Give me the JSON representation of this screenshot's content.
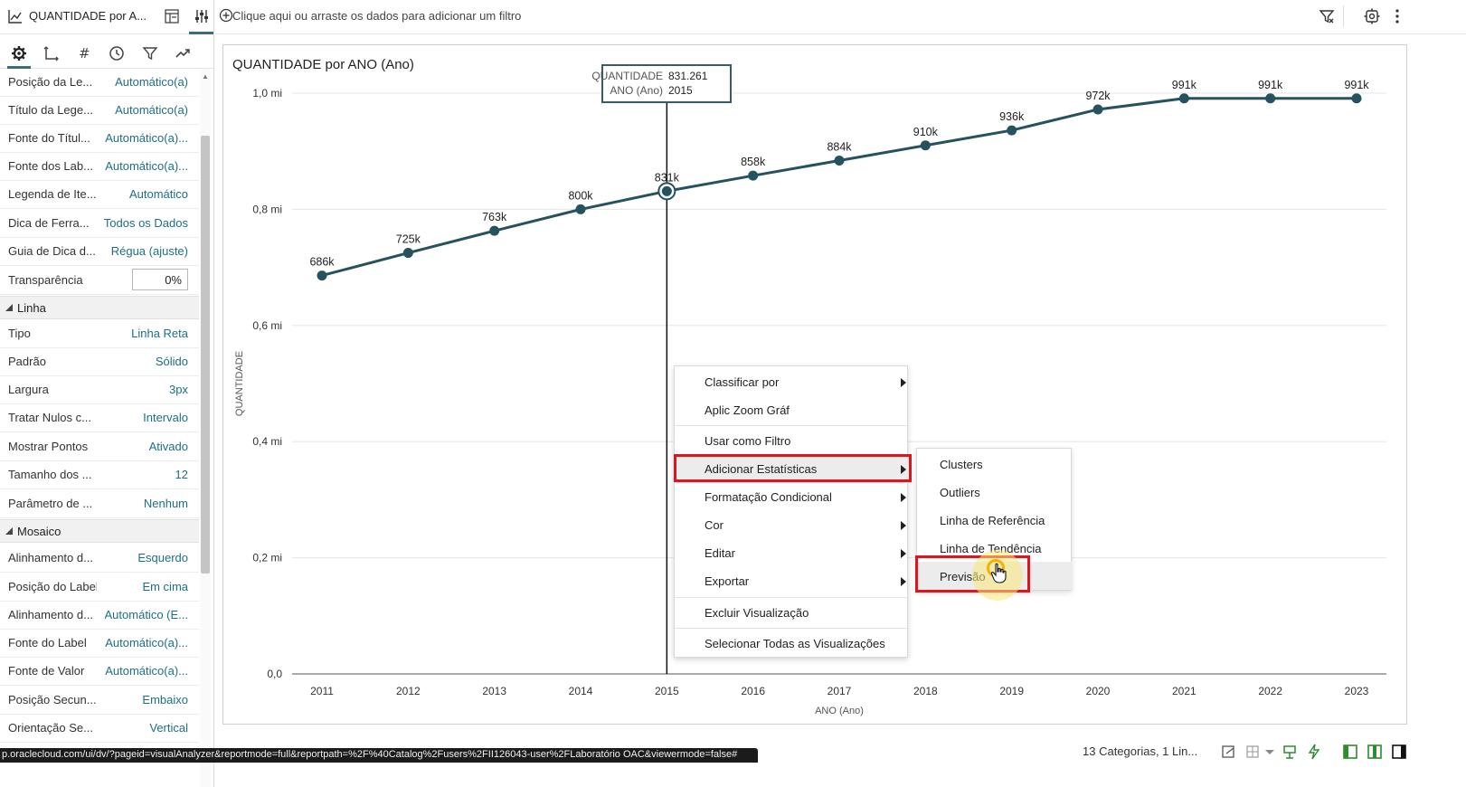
{
  "left_panel": {
    "viz_title": "QUANTIDADE por A...",
    "properties_group1": [
      {
        "label": "Posição da Le...",
        "value": "Automático(a)"
      },
      {
        "label": "Título da Lege...",
        "value": "Automático(a)"
      },
      {
        "label": "Fonte do Títul...",
        "value": "Automático(a)..."
      },
      {
        "label": "Fonte dos Lab...",
        "value": "Automático(a)..."
      },
      {
        "label": "Legenda de Ite...",
        "value": "Automático"
      },
      {
        "label": "Dica de Ferra...",
        "value": "Todos os Dados"
      },
      {
        "label": "Guia de Dica d...",
        "value": "Régua (ajuste)"
      }
    ],
    "transparency": {
      "label": "Transparência",
      "value": "0%"
    },
    "section_line": "Linha",
    "properties_line": [
      {
        "label": "Tipo",
        "value": "Linha Reta"
      },
      {
        "label": "Padrão",
        "value": "Sólido"
      },
      {
        "label": "Largura",
        "value": "3px"
      },
      {
        "label": "Tratar Nulos c...",
        "value": "Intervalo"
      },
      {
        "label": "Mostrar Pontos",
        "value": "Ativado"
      },
      {
        "label": "Tamanho dos ...",
        "value": "12"
      },
      {
        "label": "Parâmetro de ...",
        "value": "Nenhum"
      }
    ],
    "section_tile": "Mosaico",
    "properties_tile": [
      {
        "label": "Alinhamento d...",
        "value": "Esquerdo"
      },
      {
        "label": "Posição do Label",
        "value": "Em cima"
      },
      {
        "label": "Alinhamento d...",
        "value": "Automático (E..."
      },
      {
        "label": "Fonte do Label",
        "value": "Automático(a)..."
      },
      {
        "label": "Fonte de Valor",
        "value": "Automático(a)..."
      },
      {
        "label": "Posição Secun...",
        "value": "Embaixo"
      },
      {
        "label": "Orientação Se...",
        "value": "Vertical"
      }
    ]
  },
  "filter_bar": {
    "hint": "Clique aqui ou arraste os dados para adicionar um filtro"
  },
  "tooltip": {
    "measure_label": "QUANTIDADE",
    "measure_value": "831.261",
    "dim_label": "ANO (Ano)",
    "dim_value": "2015"
  },
  "context_menu": {
    "items": [
      {
        "label": "Classificar por",
        "submenu": true
      },
      {
        "label": "Aplic Zoom Gráf",
        "submenu": false
      },
      {
        "label": "Usar como Filtro",
        "submenu": false
      },
      {
        "label": "Adicionar Estatísticas",
        "submenu": true
      },
      {
        "label": "Formatação Condicional",
        "submenu": true
      },
      {
        "label": "Cor",
        "submenu": true
      },
      {
        "label": "Editar",
        "submenu": true
      },
      {
        "label": "Exportar",
        "submenu": true
      },
      {
        "label": "Excluir Visualização",
        "submenu": false
      },
      {
        "label": "Selecionar Todas as Visualizações",
        "submenu": false
      }
    ],
    "submenu_items": [
      "Clusters",
      "Outliers",
      "Linha de Referência",
      "Linha de Tendência",
      "Previsão"
    ]
  },
  "status_bar": {
    "url": "p.oraclecloud.com/ui/dv/?pageid=visualAnalyzer&reportmode=full&reportpath=%2F%40Catalog%2Fusers%2FII126043-user%2FLaboratório OAC&viewermode=false#",
    "summary": "13 Categorias, 1 Lin..."
  },
  "chart_data": {
    "type": "line",
    "title": "QUANTIDADE por ANO (Ano)",
    "xlabel": "ANO (Ano)",
    "ylabel": "QUANTIDADE",
    "categories": [
      "2011",
      "2012",
      "2013",
      "2014",
      "2015",
      "2016",
      "2017",
      "2018",
      "2019",
      "2020",
      "2021",
      "2022",
      "2023"
    ],
    "series": [
      {
        "values": [
          686000,
          725000,
          763000,
          800000,
          831261,
          858000,
          884000,
          910000,
          936000,
          972000,
          991000,
          991000,
          991000
        ]
      }
    ],
    "data_labels": [
      "686k",
      "725k",
      "763k",
      "800k",
      "831k",
      "858k",
      "884k",
      "910k",
      "936k",
      "972k",
      "991k",
      "991k",
      "991k"
    ],
    "ylim": [
      0,
      1000000
    ],
    "yticks": [
      0,
      200000,
      400000,
      600000,
      800000,
      1000000
    ],
    "ytick_labels": [
      "0,0",
      "0,2 mi",
      "0,4 mi",
      "0,6 mi",
      "0,8 mi",
      "1,0 mi"
    ],
    "highlighted_category": "2015",
    "grid": true,
    "colors": {
      "line": "#25525d",
      "grid": "#e6e6e6"
    }
  }
}
